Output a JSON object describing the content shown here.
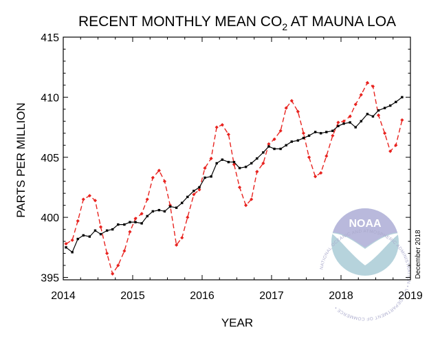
{
  "chart_data": {
    "type": "line",
    "title": {
      "before_sub": "RECENT MONTHLY MEAN CO",
      "subscript": "2",
      "after_sub": " AT MAUNA LOA"
    },
    "xlabel": "YEAR",
    "ylabel": "PARTS PER MILLION",
    "xlim": [
      2014,
      2019
    ],
    "ylim": [
      394.8,
      415
    ],
    "xticks": [
      2014,
      2015,
      2016,
      2017,
      2018,
      2019
    ],
    "yticks": [
      395,
      400,
      405,
      410,
      415
    ],
    "grid": false,
    "legend": "none",
    "series": [
      {
        "style": "red-dashed-diamond",
        "color": "#e8231f",
        "x": [
          2014.04,
          2014.13,
          2014.21,
          2014.29,
          2014.38,
          2014.46,
          2014.54,
          2014.63,
          2014.71,
          2014.79,
          2014.88,
          2014.96,
          2015.04,
          2015.13,
          2015.21,
          2015.29,
          2015.38,
          2015.46,
          2015.54,
          2015.63,
          2015.71,
          2015.79,
          2015.88,
          2015.96,
          2016.04,
          2016.13,
          2016.21,
          2016.29,
          2016.38,
          2016.46,
          2016.54,
          2016.63,
          2016.71,
          2016.79,
          2016.88,
          2016.96,
          2017.04,
          2017.13,
          2017.21,
          2017.29,
          2017.38,
          2017.46,
          2017.54,
          2017.63,
          2017.71,
          2017.79,
          2017.88,
          2017.96,
          2018.04,
          2018.13,
          2018.21,
          2018.29,
          2018.38,
          2018.46,
          2018.54,
          2018.63,
          2018.71,
          2018.79,
          2018.88
        ],
        "y": [
          397.8,
          398.1,
          399.7,
          401.5,
          401.8,
          401.4,
          399.2,
          397.0,
          395.3,
          396.0,
          397.2,
          398.8,
          399.9,
          400.3,
          401.5,
          403.3,
          403.9,
          403.0,
          401.0,
          397.7,
          398.3,
          400.0,
          401.9,
          402.3,
          404.1,
          404.9,
          407.5,
          407.7,
          406.9,
          404.4,
          402.5,
          401.0,
          401.5,
          403.8,
          404.5,
          406.1,
          406.5,
          407.2,
          409.1,
          409.7,
          408.8,
          407.0,
          405.0,
          403.4,
          403.7,
          405.1,
          406.8,
          407.9,
          408.0,
          408.4,
          409.4,
          410.2,
          411.2,
          410.9,
          408.5,
          407.0,
          405.5,
          406.0,
          408.1
        ]
      },
      {
        "style": "black-solid-square",
        "color": "#000000",
        "x": [
          2014.04,
          2014.13,
          2014.21,
          2014.29,
          2014.38,
          2014.46,
          2014.54,
          2014.63,
          2014.71,
          2014.79,
          2014.88,
          2014.96,
          2015.04,
          2015.13,
          2015.21,
          2015.29,
          2015.38,
          2015.46,
          2015.54,
          2015.63,
          2015.71,
          2015.79,
          2015.88,
          2015.96,
          2016.04,
          2016.13,
          2016.21,
          2016.29,
          2016.38,
          2016.46,
          2016.54,
          2016.63,
          2016.71,
          2016.79,
          2016.88,
          2016.96,
          2017.04,
          2017.13,
          2017.21,
          2017.29,
          2017.38,
          2017.46,
          2017.54,
          2017.63,
          2017.71,
          2017.79,
          2017.88,
          2017.96,
          2018.04,
          2018.13,
          2018.21,
          2018.29,
          2018.38,
          2018.46,
          2018.54,
          2018.63,
          2018.71,
          2018.79,
          2018.88
        ],
        "y": [
          397.5,
          397.1,
          398.2,
          398.5,
          398.4,
          398.9,
          398.6,
          398.9,
          399.0,
          399.4,
          399.4,
          399.6,
          399.6,
          399.5,
          400.1,
          400.5,
          400.6,
          400.5,
          400.9,
          400.8,
          401.2,
          401.7,
          402.2,
          402.5,
          403.3,
          403.4,
          404.5,
          404.8,
          404.6,
          404.6,
          404.1,
          404.2,
          404.5,
          404.9,
          405.4,
          405.9,
          405.7,
          405.7,
          406.0,
          406.3,
          406.4,
          406.6,
          406.8,
          407.1,
          407.0,
          407.1,
          407.2,
          407.6,
          407.8,
          407.9,
          407.5,
          408.0,
          408.6,
          408.4,
          408.9,
          409.1,
          409.3,
          409.6,
          410.0
        ]
      }
    ]
  },
  "logo": {
    "name": "NOAA",
    "ring_text": "NATIONAL OCEANIC AND ATMOSPHERIC ADMINISTRATION • U.S. DEPARTMENT OF COMMERCE •",
    "colors": {
      "sky": "#b9b9dc",
      "sea": "#b6d3dc",
      "bird": "#ffffff"
    }
  },
  "date_note": "December 2018"
}
